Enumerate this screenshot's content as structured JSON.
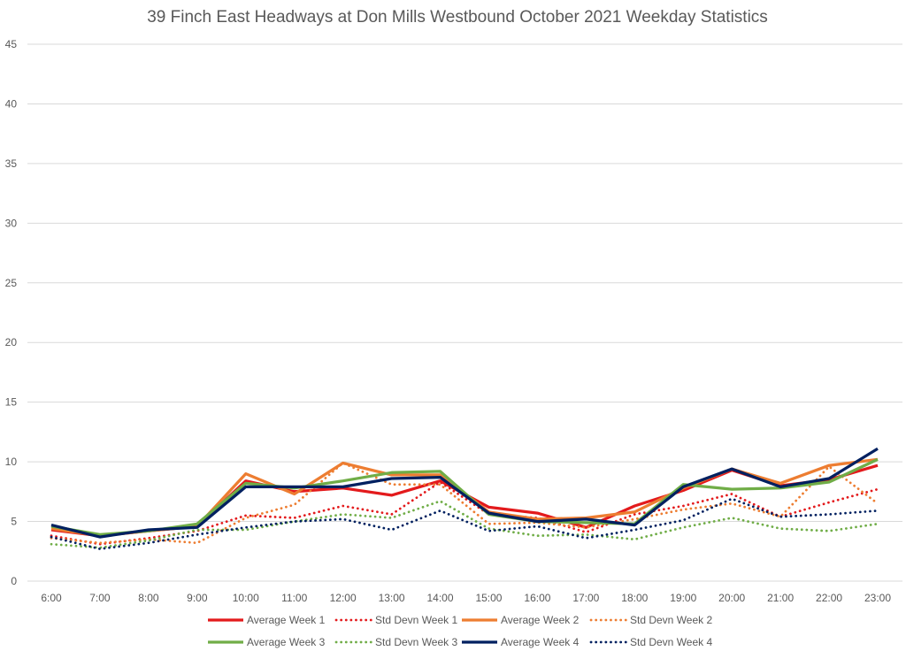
{
  "chart_data": {
    "type": "line",
    "title": "39 Finch East Headways at Don Mills Westbound October 2021 Weekday Statistics",
    "xlabel": "",
    "ylabel": "",
    "categories": [
      "6:00",
      "7:00",
      "8:00",
      "9:00",
      "10:00",
      "11:00",
      "12:00",
      "13:00",
      "14:00",
      "15:00",
      "16:00",
      "17:00",
      "18:00",
      "19:00",
      "20:00",
      "21:00",
      "22:00",
      "23:00"
    ],
    "ylim": [
      0,
      45
    ],
    "yticks": [
      0,
      5,
      10,
      15,
      20,
      25,
      30,
      35,
      40,
      45
    ],
    "grid": true,
    "legend_position": "bottom",
    "series": [
      {
        "name": "Average Week 1",
        "color": "#e31a1c",
        "style": "solid",
        "values": [
          4.3,
          3.8,
          4.2,
          4.6,
          8.4,
          7.5,
          7.8,
          7.2,
          8.4,
          6.2,
          5.7,
          4.5,
          6.3,
          7.6,
          9.3,
          8.0,
          8.5,
          9.7
        ]
      },
      {
        "name": "Std Devn Week 1",
        "color": "#e31a1c",
        "style": "dotted",
        "values": [
          3.8,
          3.1,
          3.6,
          4.2,
          5.5,
          5.3,
          6.3,
          5.6,
          8.3,
          5.6,
          5.3,
          4.1,
          5.6,
          6.3,
          7.3,
          5.4,
          6.6,
          7.7
        ]
      },
      {
        "name": "Average Week 2",
        "color": "#ed7d31",
        "style": "solid",
        "values": [
          4.4,
          3.8,
          4.2,
          4.6,
          9.0,
          7.3,
          9.9,
          8.9,
          8.9,
          5.8,
          5.2,
          5.3,
          5.8,
          7.8,
          9.4,
          8.2,
          9.7,
          10.2
        ]
      },
      {
        "name": "Std Devn Week 2",
        "color": "#ed7d31",
        "style": "dotted",
        "values": [
          3.6,
          3.2,
          3.5,
          3.2,
          5.3,
          6.4,
          9.9,
          8.1,
          8.1,
          4.8,
          4.9,
          4.5,
          5.2,
          6.0,
          6.5,
          5.4,
          9.6,
          6.5
        ]
      },
      {
        "name": "Average Week 3",
        "color": "#70ad47",
        "style": "solid",
        "values": [
          4.6,
          3.9,
          4.2,
          4.8,
          8.2,
          7.8,
          8.4,
          9.1,
          9.2,
          5.6,
          5.0,
          4.9,
          4.8,
          8.1,
          7.7,
          7.8,
          8.3,
          10.2
        ]
      },
      {
        "name": "Std Devn Week 3",
        "color": "#70ad47",
        "style": "dotted",
        "values": [
          3.1,
          2.8,
          3.4,
          4.3,
          4.3,
          5.0,
          5.6,
          5.3,
          6.7,
          4.4,
          3.8,
          3.9,
          3.5,
          4.5,
          5.3,
          4.4,
          4.2,
          4.8
        ]
      },
      {
        "name": "Average Week 4",
        "color": "#002060",
        "style": "solid",
        "values": [
          4.7,
          3.7,
          4.3,
          4.5,
          7.9,
          7.9,
          7.9,
          8.6,
          8.7,
          5.7,
          5.0,
          5.2,
          4.7,
          7.9,
          9.4,
          7.9,
          8.6,
          11.1
        ]
      },
      {
        "name": "Std Devn Week 4",
        "color": "#002060",
        "style": "dotted",
        "values": [
          3.7,
          2.7,
          3.2,
          3.9,
          4.5,
          5.0,
          5.2,
          4.3,
          5.9,
          4.2,
          4.6,
          3.6,
          4.3,
          5.1,
          6.9,
          5.4,
          5.6,
          5.9
        ]
      }
    ]
  }
}
